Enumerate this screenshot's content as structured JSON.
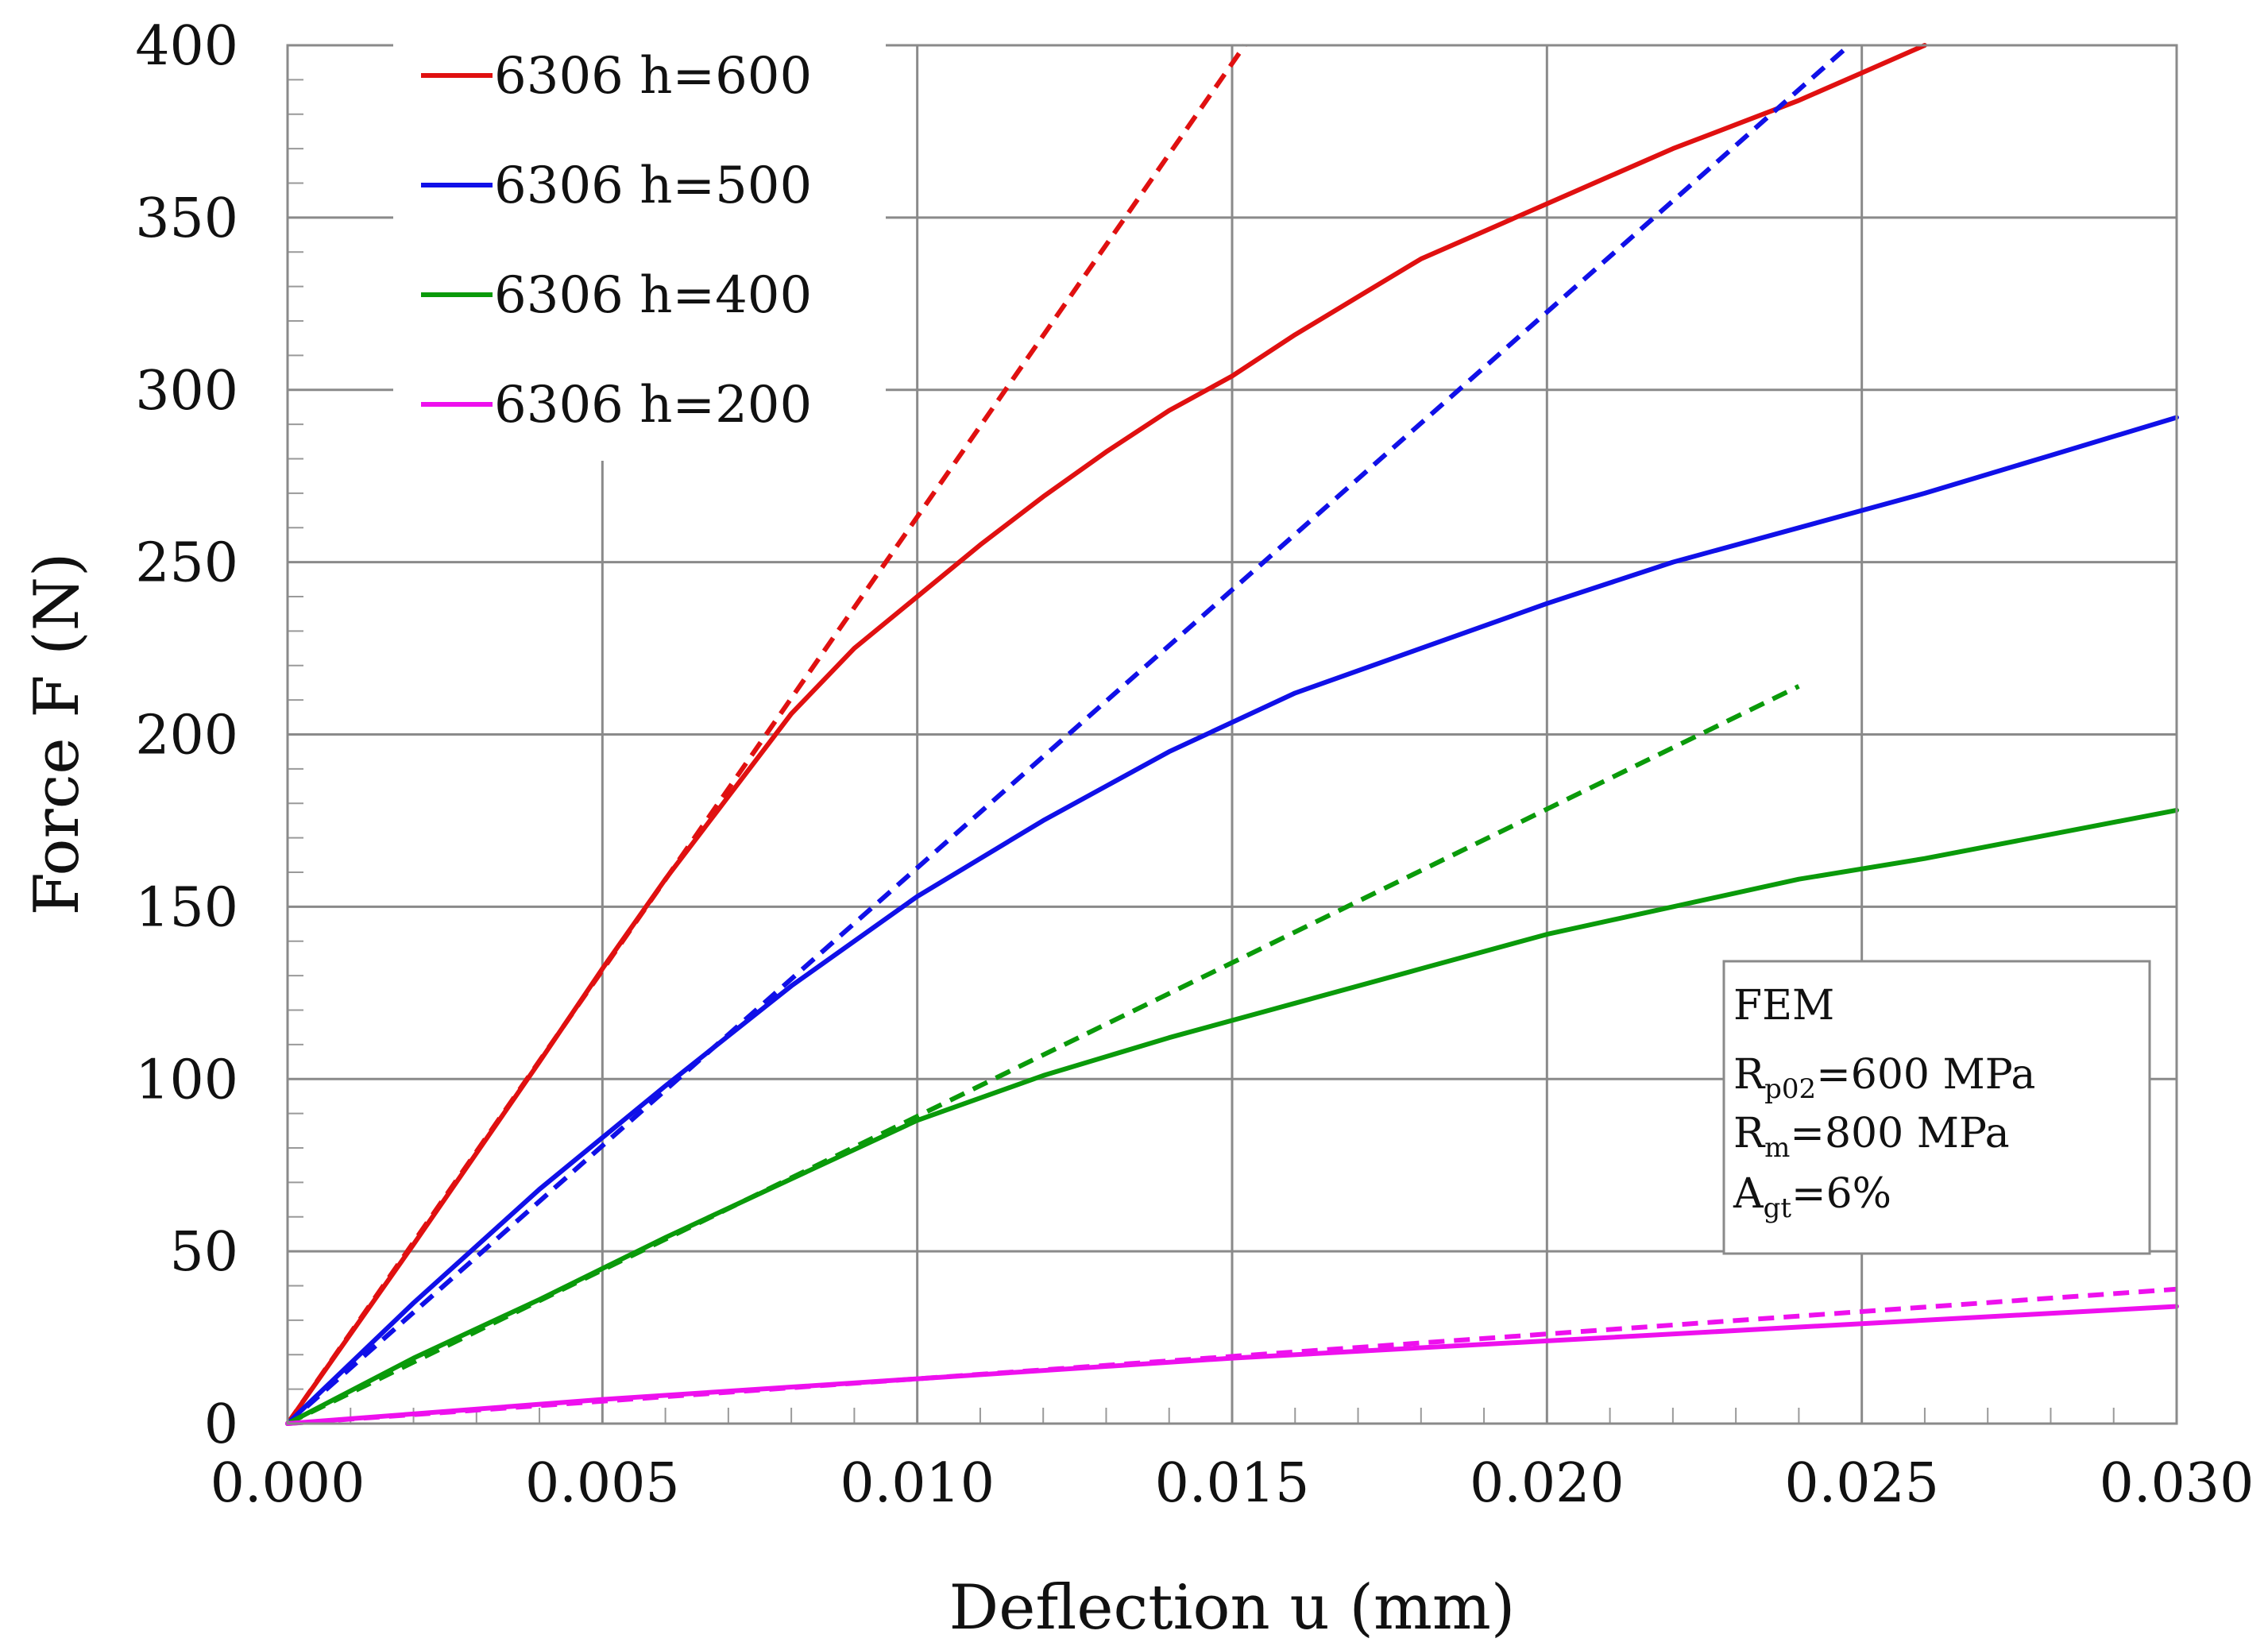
{
  "chart_data": {
    "type": "line",
    "title": "",
    "xlabel": "Deflection u (mm)",
    "ylabel": "Force F (N)",
    "xlim": [
      0,
      0.03
    ],
    "ylim": [
      0,
      400
    ],
    "xticks": [
      "0.000",
      "0.005",
      "0.010",
      "0.015",
      "0.020",
      "0.025",
      "0.030"
    ],
    "yticks": [
      "0",
      "50",
      "100",
      "150",
      "200",
      "250",
      "300",
      "350",
      "400"
    ],
    "grid": true,
    "legend_position": "top-left",
    "legend": [
      {
        "label": "6306 h=600",
        "color": "#e01010"
      },
      {
        "label": "6306 h=500",
        "color": "#1010e8"
      },
      {
        "label": "6306 h=400",
        "color": "#0a9a0a"
      },
      {
        "label": "6306 h=200",
        "color": "#ee10ee"
      }
    ],
    "annotation": {
      "line1": "FEM",
      "line2_main": "R",
      "line2_sub": "p02",
      "line2_rest": "=600 MPa",
      "line3_main": "R",
      "line3_sub": "m",
      "line3_rest": "=800 MPa",
      "line4_main": "A",
      "line4_sub": "gt",
      "line4_rest": "=6%"
    },
    "series": [
      {
        "name": "6306 h=600",
        "style": "solid",
        "color": "#e01010",
        "x": [
          0,
          0.002,
          0.004,
          0.005,
          0.006,
          0.007,
          0.008,
          0.009,
          0.01,
          0.011,
          0.012,
          0.013,
          0.014,
          0.015,
          0.016,
          0.017,
          0.018,
          0.019,
          0.02,
          0.021,
          0.022,
          0.023,
          0.024,
          0.025,
          0.026
        ],
        "y": [
          0,
          52,
          105,
          132,
          158,
          182,
          206,
          225,
          240,
          255,
          269,
          282,
          294,
          304,
          316,
          327,
          338,
          346,
          354,
          362,
          370,
          377,
          384,
          392,
          400
        ]
      },
      {
        "name": "6306 h=600 (linear)",
        "style": "dashed",
        "color": "#e01010",
        "x": [
          0,
          0.0152
        ],
        "y": [
          0,
          400
        ]
      },
      {
        "name": "6306 h=500",
        "style": "solid",
        "color": "#1010e8",
        "x": [
          0,
          0.002,
          0.004,
          0.006,
          0.008,
          0.01,
          0.012,
          0.014,
          0.016,
          0.018,
          0.02,
          0.022,
          0.024,
          0.026,
          0.028,
          0.03
        ],
        "y": [
          0,
          35,
          68,
          98,
          127,
          153,
          175,
          195,
          212,
          225,
          238,
          250,
          260,
          270,
          281,
          292
        ]
      },
      {
        "name": "6306 h=500 (linear)",
        "style": "dashed",
        "color": "#1010e8",
        "x": [
          0,
          0.0248
        ],
        "y": [
          0,
          400
        ]
      },
      {
        "name": "6306 h=400",
        "style": "solid",
        "color": "#0a9a0a",
        "x": [
          0,
          0.002,
          0.004,
          0.006,
          0.008,
          0.01,
          0.012,
          0.014,
          0.016,
          0.018,
          0.02,
          0.022,
          0.024,
          0.026,
          0.028,
          0.03
        ],
        "y": [
          0,
          19,
          36,
          54,
          71,
          88,
          101,
          112,
          122,
          132,
          142,
          150,
          158,
          164,
          171,
          178
        ]
      },
      {
        "name": "6306 h=400 (linear)",
        "style": "dashed",
        "color": "#0a9a0a",
        "x": [
          0,
          0.024
        ],
        "y": [
          0,
          214
        ]
      },
      {
        "name": "6306 h=200",
        "style": "solid",
        "color": "#ee10ee",
        "x": [
          0,
          0.005,
          0.01,
          0.015,
          0.02,
          0.025,
          0.03
        ],
        "y": [
          0,
          7,
          13,
          19,
          24,
          29,
          34
        ]
      },
      {
        "name": "6306 h=200 (linear)",
        "style": "dashed",
        "color": "#ee10ee",
        "x": [
          0,
          0.03
        ],
        "y": [
          0,
          39
        ]
      }
    ]
  }
}
